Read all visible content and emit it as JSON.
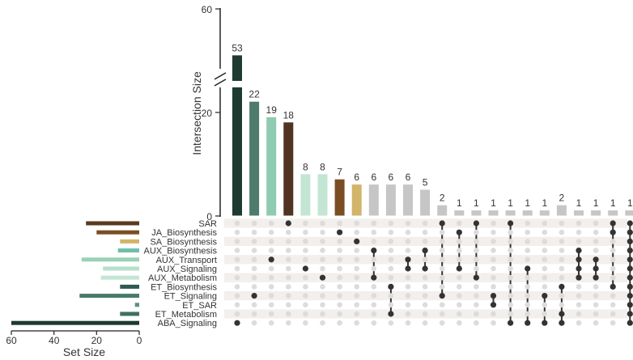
{
  "chart_data": {
    "type": "bar",
    "subtype": "upset",
    "y_axis_label": "Intersection Size",
    "y_ticks": [
      "0",
      "20",
      "60"
    ],
    "y_axis_break": true,
    "set_size_label": "Set Size",
    "set_size_ticks": [
      "60",
      "40",
      "20",
      "0"
    ],
    "sets": [
      {
        "name": "SAR",
        "size": 25,
        "color": "#5b3a1e"
      },
      {
        "name": "JA_Biosynthesis",
        "size": 20,
        "color": "#7a4e22"
      },
      {
        "name": "SA_Biosynthesis",
        "size": 9,
        "color": "#d2b46a"
      },
      {
        "name": "AUX_Biosynthesis",
        "size": 10,
        "color": "#6dbfa9"
      },
      {
        "name": "AUX_Transport",
        "size": 27,
        "color": "#9bd1b5"
      },
      {
        "name": "AUX_Signaling",
        "size": 17,
        "color": "#b6e0cb"
      },
      {
        "name": "AUX_Metabolism",
        "size": 18,
        "color": "#c3e6d4"
      },
      {
        "name": "ET_Biosynthesis",
        "size": 9,
        "color": "#2e5a4e"
      },
      {
        "name": "ET_Signaling",
        "size": 28,
        "color": "#477a6b"
      },
      {
        "name": "ET_SAR",
        "size": 2,
        "color": "#5c9180"
      },
      {
        "name": "ET_Metabolism",
        "size": 9,
        "color": "#3f6f61"
      },
      {
        "name": "ABA_Signaling",
        "size": 60,
        "color": "#1d3b30"
      }
    ],
    "intersections": [
      {
        "value": 53,
        "label": "53",
        "sets": [
          "ABA_Signaling"
        ],
        "color": "#1d3b30"
      },
      {
        "value": 22,
        "label": "22",
        "sets": [
          "ET_Signaling"
        ],
        "color": "#4e7b6c"
      },
      {
        "value": 19,
        "label": "19",
        "sets": [
          "AUX_Transport"
        ],
        "color": "#8ecbb0"
      },
      {
        "value": 18,
        "label": "18",
        "sets": [
          "SAR"
        ],
        "color": "#4f3421"
      },
      {
        "value": 8,
        "label": "8",
        "sets": [
          "AUX_Signaling"
        ],
        "color": "#c3e6d4"
      },
      {
        "value": 8,
        "label": "8",
        "sets": [
          "AUX_Metabolism"
        ],
        "color": "#c3e6d4"
      },
      {
        "value": 7,
        "label": "7",
        "sets": [
          "JA_Biosynthesis"
        ],
        "color": "#7a4e22"
      },
      {
        "value": 6,
        "label": "6",
        "sets": [
          "SA_Biosynthesis"
        ],
        "color": "#d2b46a"
      },
      {
        "value": 6,
        "label": "6",
        "sets": [
          "AUX_Biosynthesis",
          "AUX_Metabolism"
        ],
        "color": "#c6c6c6"
      },
      {
        "value": 6,
        "label": "6",
        "sets": [
          "ET_Biosynthesis",
          "ET_Metabolism"
        ],
        "color": "#c6c6c6"
      },
      {
        "value": 6,
        "label": "6",
        "sets": [
          "AUX_Transport",
          "AUX_Signaling"
        ],
        "color": "#c6c6c6"
      },
      {
        "value": 5,
        "label": "5",
        "sets": [
          "AUX_Biosynthesis",
          "AUX_Signaling"
        ],
        "color": "#c6c6c6"
      },
      {
        "value": 2,
        "label": "2",
        "sets": [
          "SAR",
          "ET_Signaling"
        ],
        "color": "#c6c6c6"
      },
      {
        "value": 1,
        "label": "1",
        "sets": [
          "JA_Biosynthesis",
          "AUX_Signaling"
        ],
        "color": "#c6c6c6"
      },
      {
        "value": 1,
        "label": "1",
        "sets": [
          "SAR",
          "AUX_Metabolism"
        ],
        "color": "#c6c6c6"
      },
      {
        "value": 1,
        "label": "1",
        "sets": [
          "ET_Signaling",
          "ET_SAR"
        ],
        "color": "#c6c6c6"
      },
      {
        "value": 1,
        "label": "1",
        "sets": [
          "SAR",
          "ABA_Signaling"
        ],
        "color": "#c6c6c6"
      },
      {
        "value": 1,
        "label": "1",
        "sets": [
          "AUX_Signaling",
          "ABA_Signaling"
        ],
        "color": "#c6c6c6"
      },
      {
        "value": 1,
        "label": "1",
        "sets": [
          "ET_Signaling",
          "ABA_Signaling"
        ],
        "color": "#c6c6c6"
      },
      {
        "value": 2,
        "label": "2",
        "sets": [
          "ET_Biosynthesis",
          "ET_Metabolism",
          "ABA_Signaling"
        ],
        "color": "#c6c6c6"
      },
      {
        "value": 1,
        "label": "1",
        "sets": [
          "AUX_Biosynthesis",
          "AUX_Transport",
          "AUX_Signaling",
          "AUX_Metabolism"
        ],
        "color": "#c6c6c6"
      },
      {
        "value": 1,
        "label": "1",
        "sets": [
          "AUX_Transport",
          "AUX_Signaling",
          "AUX_Metabolism"
        ],
        "color": "#c6c6c6"
      },
      {
        "value": 1,
        "label": "1",
        "sets": [
          "SAR",
          "JA_Biosynthesis",
          "ET_Biosynthesis"
        ],
        "color": "#c6c6c6"
      },
      {
        "value": 1,
        "label": "1",
        "sets": [
          "SAR",
          "JA_Biosynthesis",
          "SA_Biosynthesis",
          "AUX_Biosynthesis",
          "AUX_Transport",
          "AUX_Signaling",
          "AUX_Metabolism",
          "ET_Biosynthesis",
          "ET_Signaling",
          "ET_SAR",
          "ET_Metabolism",
          "ABA_Signaling"
        ],
        "color": "#c6c6c6"
      }
    ]
  }
}
